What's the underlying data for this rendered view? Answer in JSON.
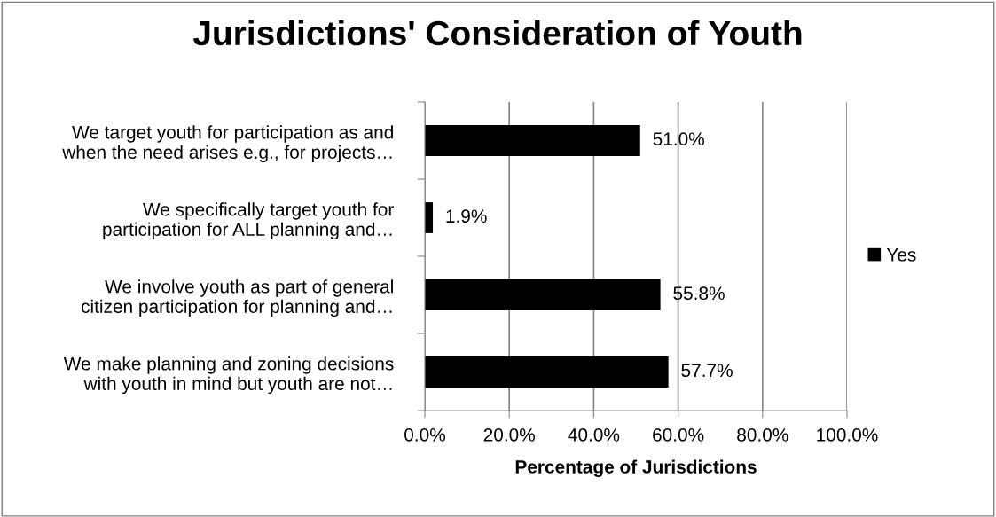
{
  "chart_data": {
    "type": "bar",
    "orientation": "horizontal",
    "title": "Jurisdictions' Consideration of Youth",
    "xlabel": "Percentage of Jurisdictions",
    "categories": [
      "We target youth for participation as and\nwhen the need arises e.g., for projects…",
      "We specifically target youth for\nparticipation for ALL planning and…",
      "We involve youth as part of general\ncitizen participation for planning and…",
      "We make planning and zoning decisions\nwith youth in mind but youth are not…"
    ],
    "series": [
      {
        "name": "Yes",
        "color": "#000000",
        "values": [
          51.0,
          1.9,
          55.8,
          57.7
        ],
        "value_labels": [
          "51.0%",
          "1.9%",
          "55.8%",
          "57.7%"
        ]
      }
    ],
    "xlim": [
      0,
      100
    ],
    "xticks": [
      {
        "value": 0,
        "label": "0.0%"
      },
      {
        "value": 20,
        "label": "20.0%"
      },
      {
        "value": 40,
        "label": "40.0%"
      },
      {
        "value": 60,
        "label": "60.0%"
      },
      {
        "value": 80,
        "label": "80.0%"
      },
      {
        "value": 100,
        "label": "100.0%"
      }
    ],
    "grid": "x",
    "legend": "right"
  }
}
